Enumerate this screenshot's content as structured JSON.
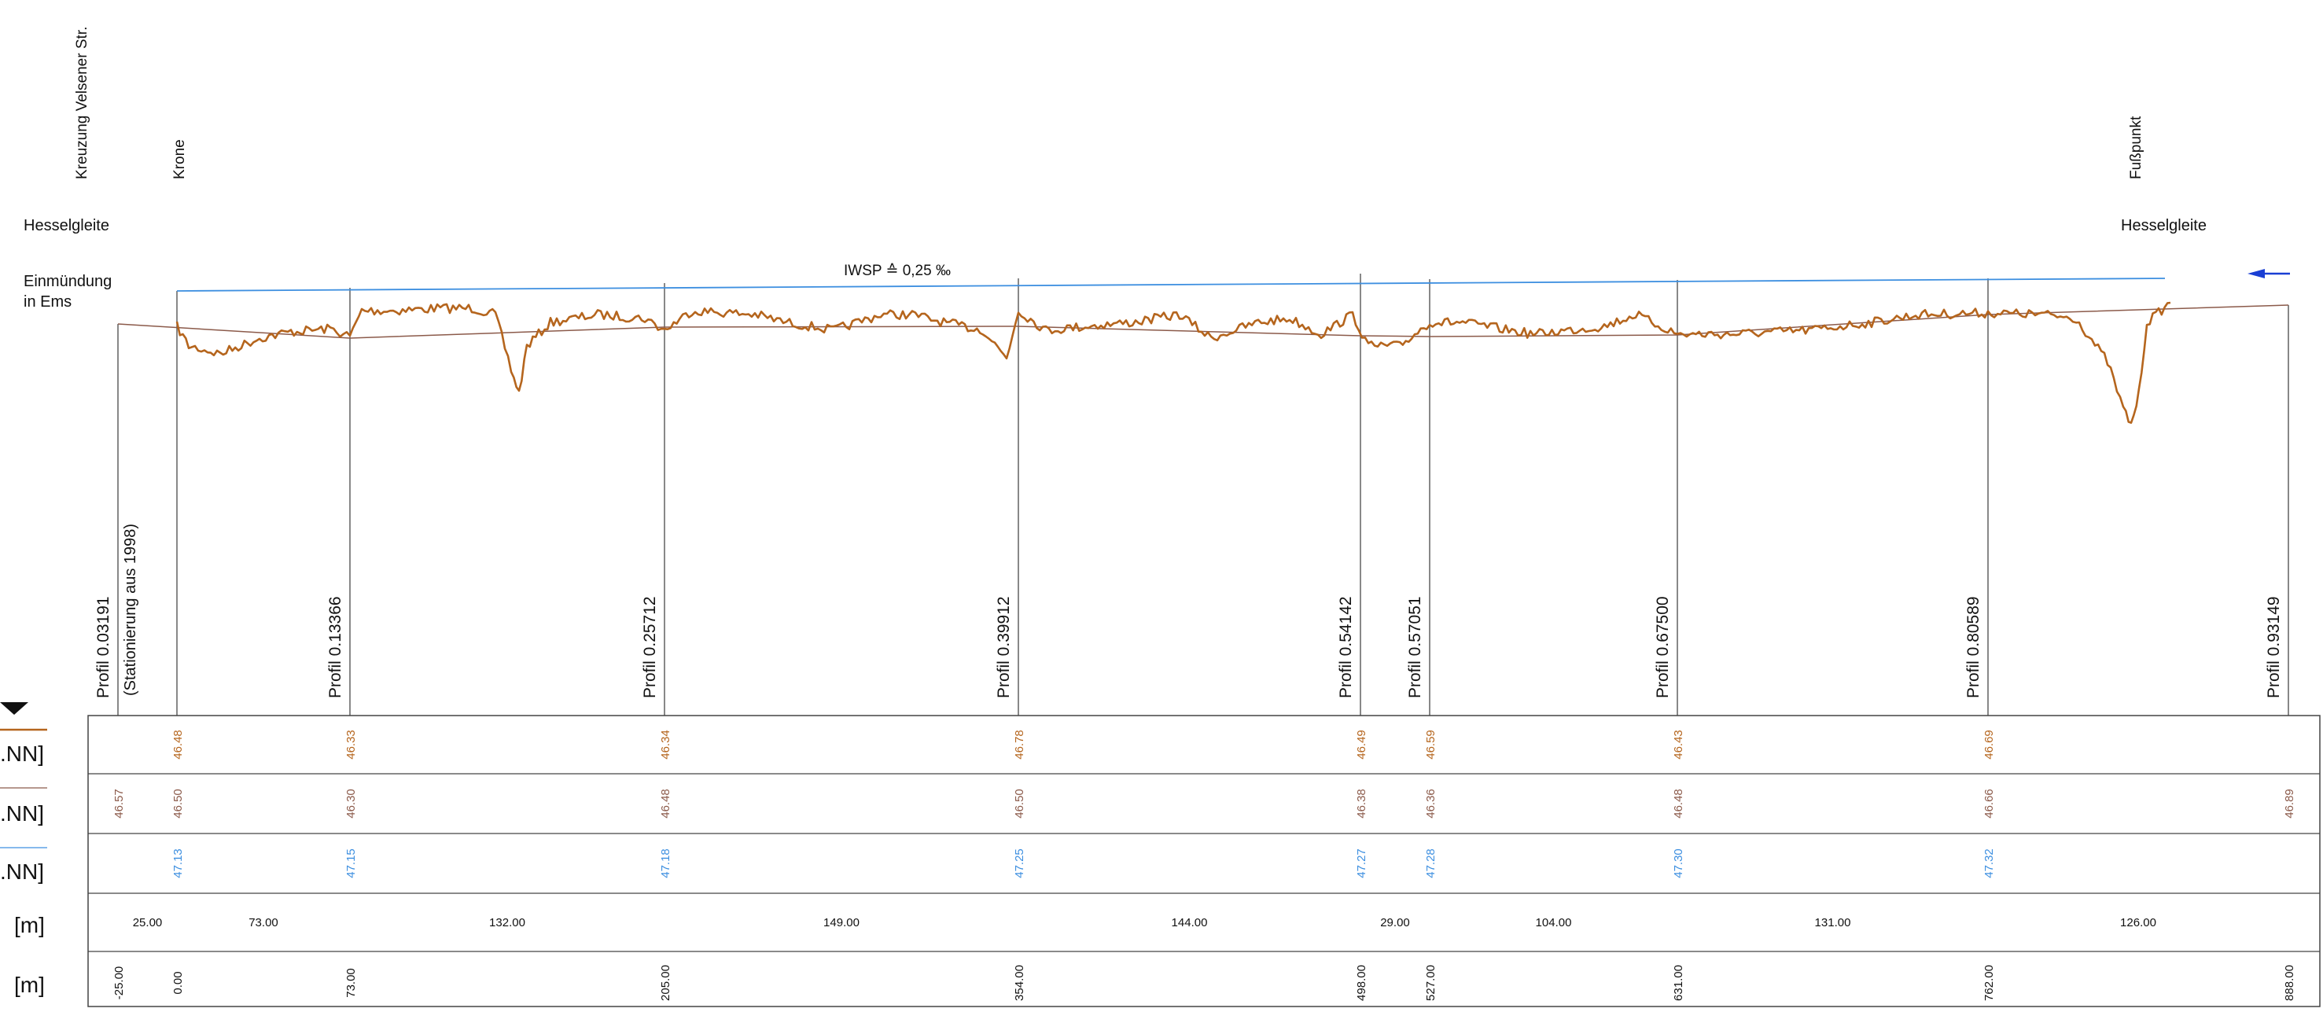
{
  "header": {
    "top_labels": {
      "kreuzung": "Kreuzung Velsener Str.",
      "krone": "Krone",
      "fusspunkt": "Fußpunkt"
    },
    "left_labels": {
      "hesselgleite_left": "Hesselgleite",
      "einmuendung_line1": "Einmündung",
      "einmuendung_line2": "in Ems"
    },
    "right_labels": {
      "hesselgleite_right": "Hesselgleite"
    },
    "slope_label": "IWSP ≙ 0,25 ‰",
    "station_note": "(Stationierung aus 1998)"
  },
  "profiles": [
    {
      "name": "Profil 0.03191",
      "station": "-25.00"
    },
    {
      "name": "",
      "station": "0.00"
    },
    {
      "name": "Profil 0.13366",
      "station": "73.00"
    },
    {
      "name": "Profil 0.25712",
      "station": "205.00"
    },
    {
      "name": "Profil 0.39912",
      "station": "354.00"
    },
    {
      "name": "Profil 0.54142",
      "station": "498.00"
    },
    {
      "name": "Profil 0.57051",
      "station": "527.00"
    },
    {
      "name": "Profil 0.67500",
      "station": "631.00"
    },
    {
      "name": "Profil 0.80589",
      "station": "762.00"
    },
    {
      "name": "Profil 0.93149",
      "station": "888.00"
    }
  ],
  "table": {
    "row_units": [
      ".NN]",
      ".NN]",
      ".NN]",
      "[m]",
      "[m]"
    ],
    "row1_values": [
      "46.48",
      "46.33",
      "46.34",
      "46.78",
      "46.49",
      "46.59",
      "46.43",
      "46.69"
    ],
    "row2_values": [
      "46.57",
      "46.50",
      "46.30",
      "46.48",
      "46.50",
      "46.38",
      "46.36",
      "46.48",
      "46.66",
      "46.89"
    ],
    "row3_values": [
      "47.13",
      "47.15",
      "47.18",
      "47.25",
      "47.27",
      "47.28",
      "47.30",
      "47.32"
    ],
    "row4_distances": [
      "25.00",
      "73.00",
      "132.00",
      "149.00",
      "144.00",
      "29.00",
      "104.00",
      "131.00",
      "126.00"
    ],
    "row5_stations": [
      "-25.00",
      "0.00",
      "73.00",
      "205.00",
      "354.00",
      "498.00",
      "527.00",
      "631.00",
      "762.00",
      "888.00"
    ]
  },
  "colors": {
    "terrain": "#b5651d",
    "design": "#8b5a4a",
    "water": "#3d8fe0",
    "arrow": "#1a3fd4",
    "line": "#555555"
  }
}
